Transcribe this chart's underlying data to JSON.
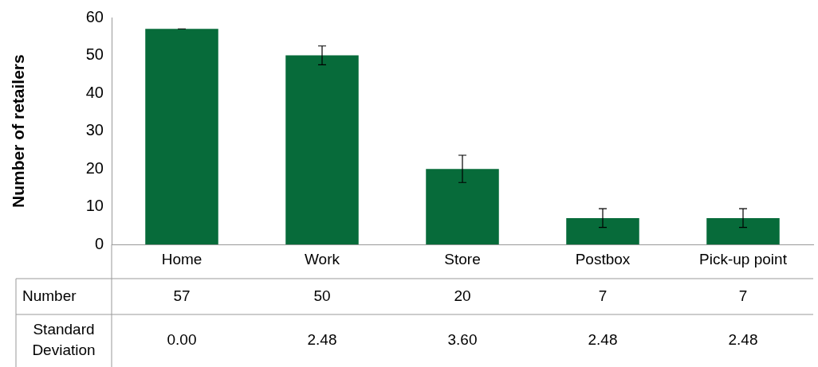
{
  "chart_data": {
    "type": "bar",
    "ylabel": "Number of retailers",
    "categories": [
      "Home",
      "Work",
      "Store",
      "Postbox",
      "Pick-up point"
    ],
    "series": [
      {
        "name": "Number",
        "color": "#076b3a",
        "values": [
          57,
          50,
          20,
          7,
          7
        ],
        "errors": [
          0,
          2.48,
          3.6,
          2.48,
          2.48
        ]
      }
    ],
    "ylim": [
      0,
      60
    ],
    "yticks": [
      0,
      10,
      20,
      30,
      40,
      50,
      60
    ],
    "grid": false,
    "legend": false,
    "data_labels": true,
    "annotations": [
      "Standard Deviation",
      "0.00",
      "2.48",
      "3.60",
      "2.48",
      "2.48"
    ]
  }
}
